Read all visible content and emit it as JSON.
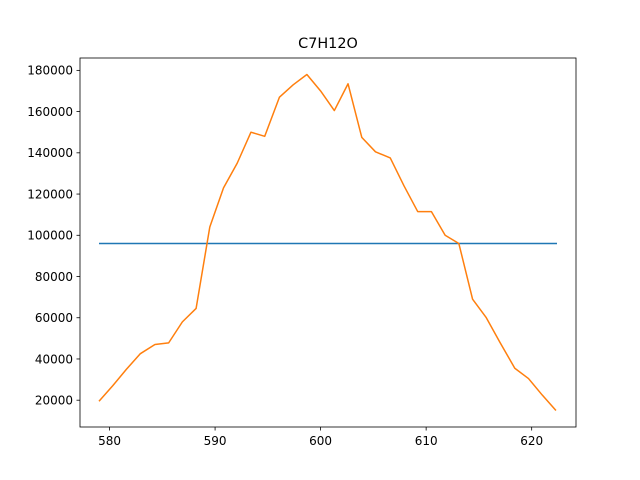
{
  "chart_data": {
    "type": "line",
    "title": "C7H12O",
    "xlabel": "",
    "ylabel": "",
    "xlim": [
      577.2,
      624.2
    ],
    "ylim": [
      7000,
      186000
    ],
    "grid": false,
    "xticks": [
      580,
      590,
      600,
      610,
      620
    ],
    "yticks": [
      20000,
      40000,
      60000,
      80000,
      100000,
      120000,
      140000,
      160000,
      180000
    ],
    "colors": {
      "series_1": "#1f77b4",
      "series_2": "#ff7f0e",
      "axes": "#000000"
    },
    "series": [
      {
        "x": [
          579.0,
          622.4
        ],
        "y": [
          96000,
          96000
        ]
      },
      {
        "x": [
          579.0,
          580.3,
          581.6,
          582.9,
          584.3,
          585.6,
          586.9,
          588.2,
          589.5,
          590.8,
          592.1,
          593.4,
          594.7,
          596.1,
          597.4,
          598.7,
          600.0,
          601.3,
          602.6,
          603.9,
          605.2,
          606.6,
          607.9,
          609.2,
          610.5,
          611.8,
          613.1,
          614.4,
          615.7,
          617.0,
          618.4,
          619.7,
          621.0,
          622.3
        ],
        "y": [
          19500,
          27000,
          35000,
          42500,
          47000,
          47800,
          58000,
          64500,
          104000,
          123000,
          135000,
          150000,
          148000,
          167000,
          173000,
          178000,
          170000,
          160500,
          173500,
          147500,
          140500,
          137500,
          124000,
          111500,
          111500,
          100000,
          96000,
          69000,
          60000,
          48000,
          35500,
          30500,
          22500,
          15000
        ]
      }
    ]
  }
}
